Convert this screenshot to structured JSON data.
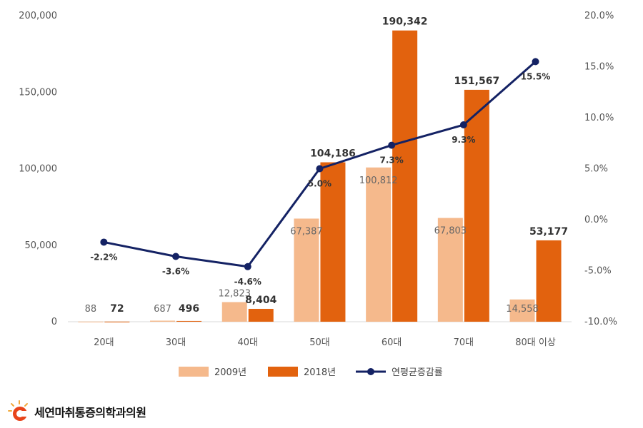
{
  "chart_data": {
    "type": "bar+line",
    "categories": [
      "20대",
      "30대",
      "40대",
      "50대",
      "60대",
      "70대",
      "80대 이상"
    ],
    "series": [
      {
        "name": "2009년",
        "type": "bar",
        "axis": "left",
        "color": "#F5B98C",
        "values": [
          88,
          687,
          12823,
          67387,
          100812,
          67803,
          14558
        ],
        "labels": [
          "88",
          "687",
          "12,823",
          "67,387",
          "100,812",
          "67,803",
          "14,558"
        ]
      },
      {
        "name": "2018년",
        "type": "bar",
        "axis": "left",
        "color": "#E2620E",
        "values": [
          72,
          496,
          8404,
          104186,
          190342,
          151567,
          53177
        ],
        "labels": [
          "72",
          "496",
          "8,404",
          "104,186",
          "190,342",
          "151,567",
          "53,177"
        ]
      },
      {
        "name": "연평균증감률",
        "type": "line",
        "axis": "right",
        "color": "#142264",
        "values": [
          -2.2,
          -3.6,
          -4.6,
          5.0,
          7.3,
          9.3,
          15.5
        ],
        "labels": [
          "-2.2%",
          "-3.6%",
          "-4.6%",
          "5.0%",
          "7.3%",
          "9.3%",
          "15.5%"
        ]
      }
    ],
    "y_left": {
      "min": 0,
      "max": 200000,
      "ticks": [
        "0",
        "50,000",
        "100,000",
        "150,000",
        "200,000"
      ]
    },
    "y_right": {
      "min": -10,
      "max": 20,
      "ticks": [
        "-10.0%",
        "-5.0%",
        "0.0%",
        "5.0%",
        "10.0%",
        "15.0%",
        "20.0%"
      ]
    },
    "legend_position": "bottom",
    "grid": false
  },
  "footer": {
    "logo_text": "세연마취통증의학과의원"
  }
}
